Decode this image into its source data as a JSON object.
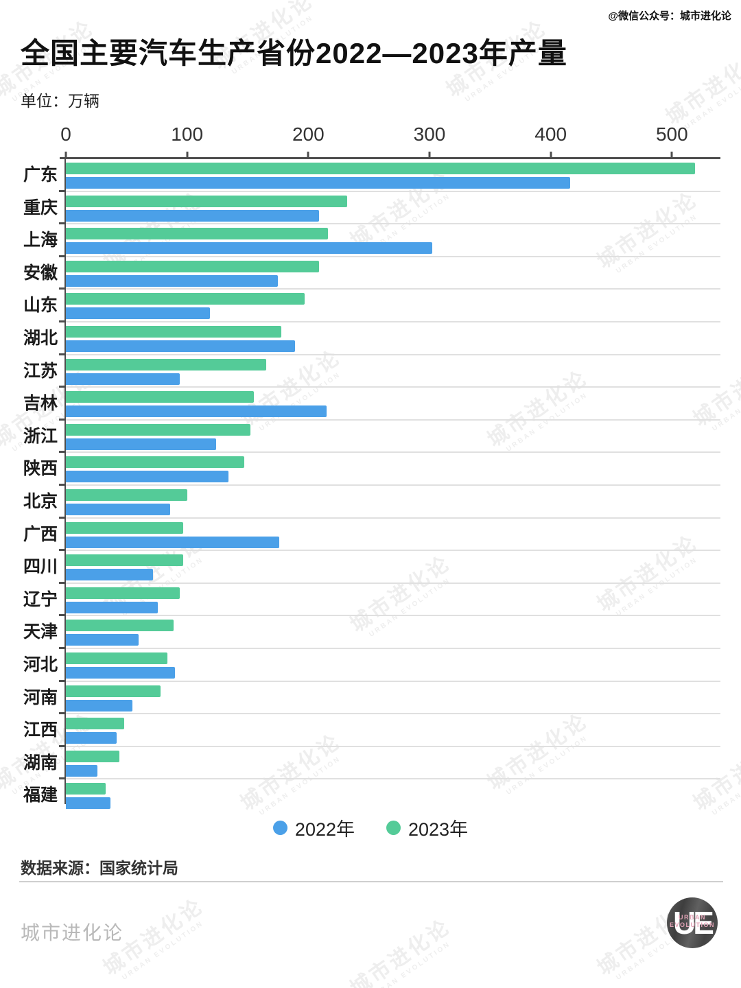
{
  "watermark_corner": "@微信公众号：城市进化论",
  "header": {
    "title": "全国主要汽车生产省份2022—2023年产量",
    "unit": "单位：万辆"
  },
  "chart_data": {
    "type": "bar",
    "orientation": "horizontal",
    "title": "全国主要汽车生产省份2022—2023年产量",
    "value_unit": "万辆",
    "xlim": [
      0,
      540
    ],
    "xticks": [
      0,
      100,
      200,
      300,
      400,
      500
    ],
    "grid": "light horizontal separators between category groups",
    "legend_position": "bottom-center",
    "categories": [
      "广东",
      "重庆",
      "上海",
      "安徽",
      "山东",
      "湖北",
      "江苏",
      "吉林",
      "浙江",
      "陕西",
      "北京",
      "广西",
      "四川",
      "辽宁",
      "天津",
      "河北",
      "河南",
      "江西",
      "湖南",
      "福建"
    ],
    "series": [
      {
        "name": "2023年",
        "color": "#54CB98",
        "values": [
          519,
          232,
          216,
          209,
          197,
          178,
          165,
          155,
          152,
          147,
          100,
          97,
          97,
          94,
          89,
          84,
          78,
          48,
          44,
          33
        ]
      },
      {
        "name": "2022年",
        "color": "#4BA0E8",
        "values": [
          416,
          209,
          302,
          175,
          119,
          189,
          94,
          215,
          124,
          134,
          86,
          176,
          72,
          76,
          60,
          90,
          55,
          42,
          26,
          37
        ]
      }
    ],
    "bar_draw_order_note": "2023 bar on top, 2022 bar below within each category group"
  },
  "legend": {
    "items": [
      {
        "label": "2022年",
        "color": "#4BA0E8"
      },
      {
        "label": "2023年",
        "color": "#54CB98"
      }
    ]
  },
  "source": "数据来源：国家统计局",
  "footer": {
    "brand": "城市进化论",
    "logo_text": "UE",
    "logo_sub_line1": "URBAN",
    "logo_sub_line2": "EVOLUTION"
  },
  "watermark_tile": {
    "cn": "城市进化论",
    "en": "URBAN EVOLUTION"
  },
  "colors": {
    "bar_2022": "#4BA0E8",
    "bar_2023": "#54CB98",
    "axis": "#4D4D4D",
    "gridline": "#E0E0E0"
  }
}
